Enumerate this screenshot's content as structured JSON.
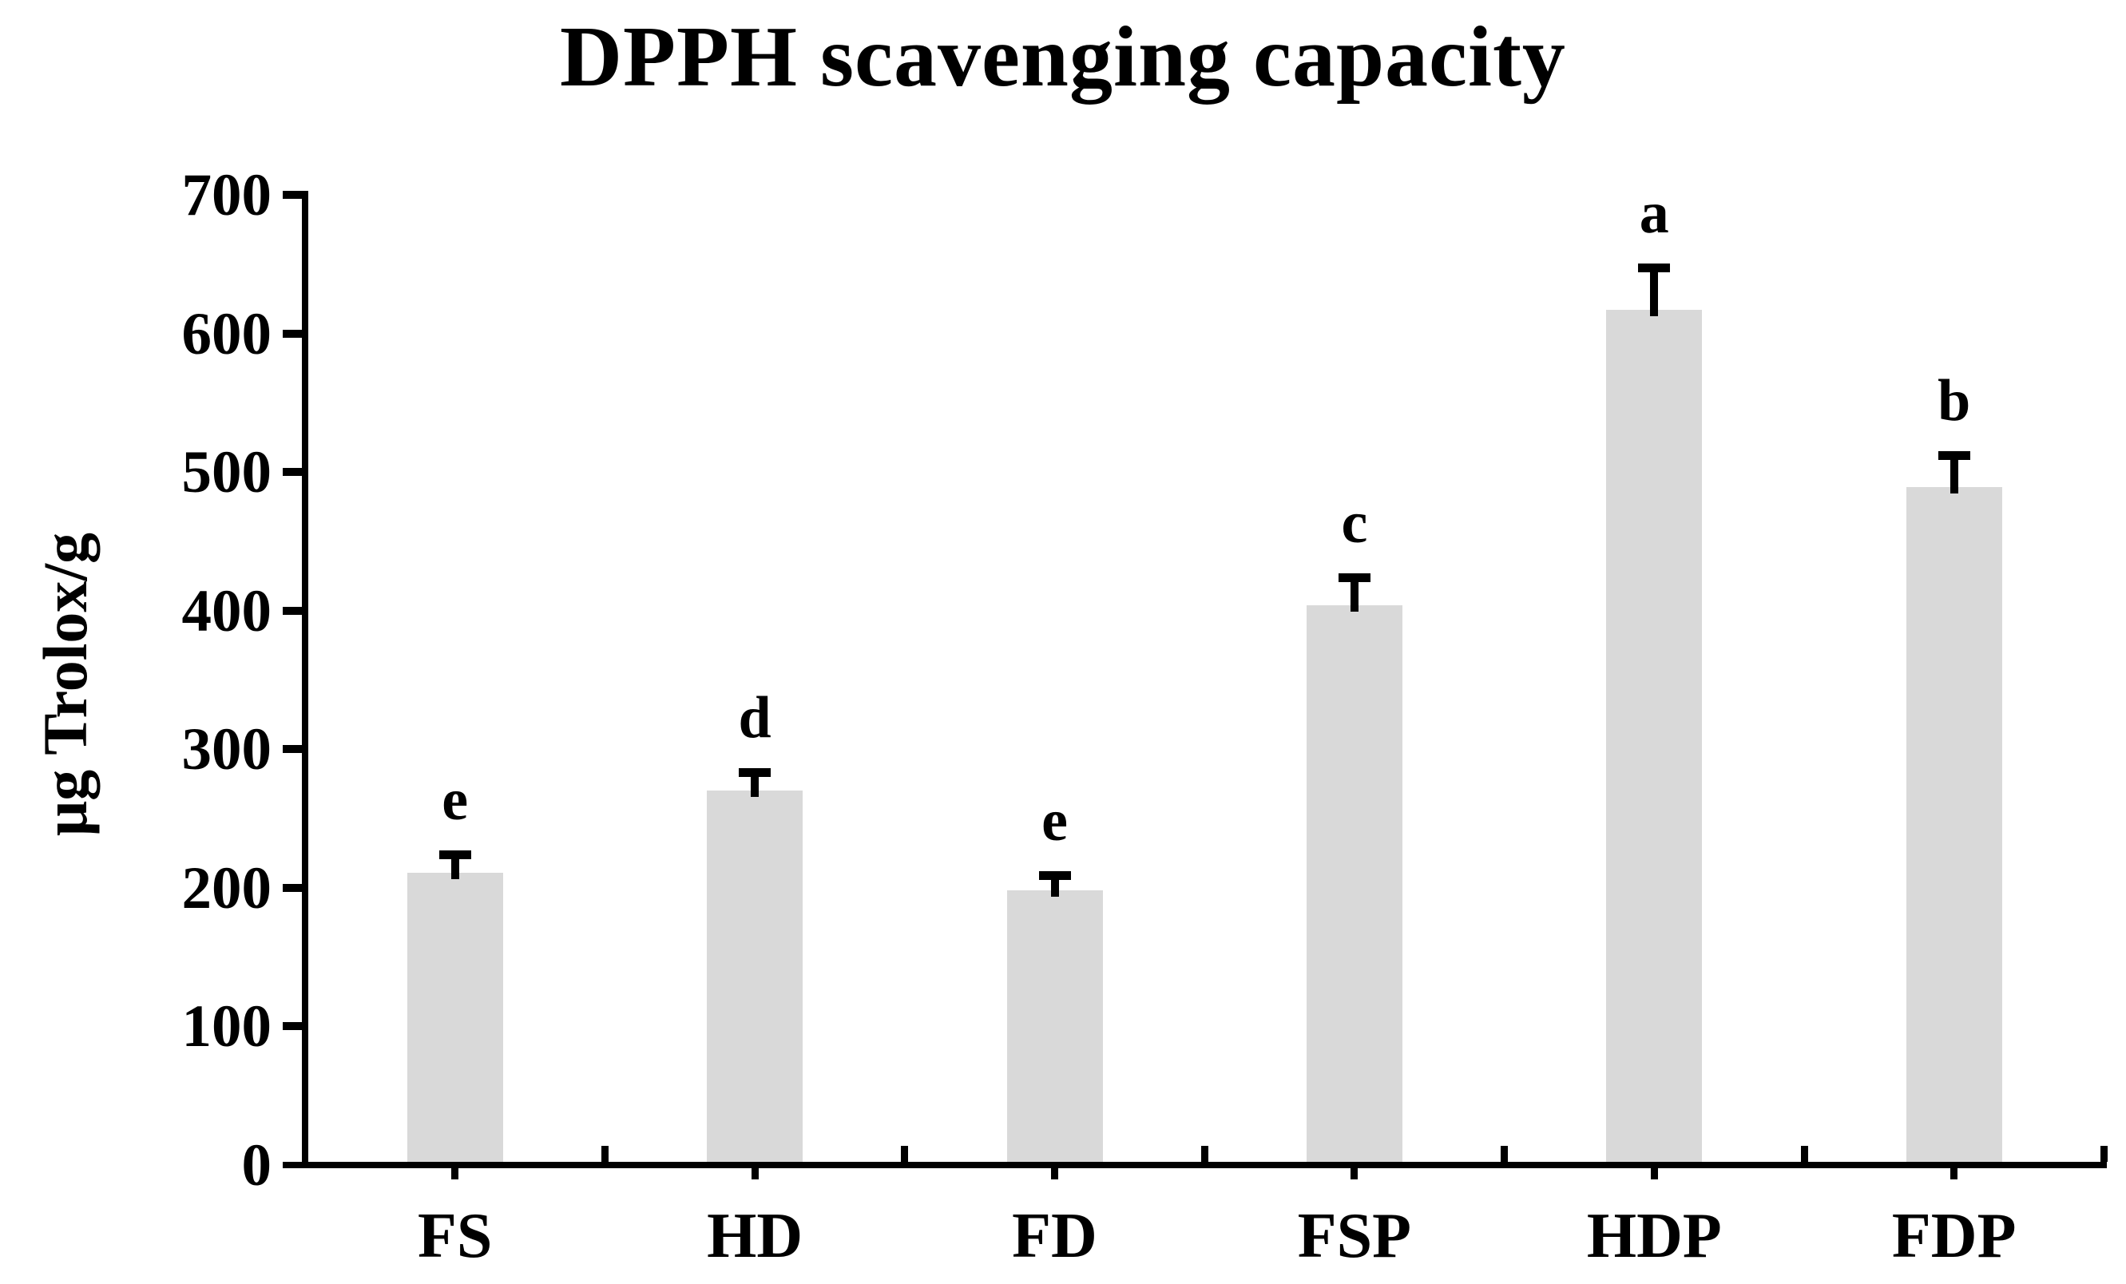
{
  "chart_data": {
    "type": "bar",
    "title": "DPPH scavenging capacity",
    "xlabel": "",
    "ylabel": "μg Trolox/g",
    "categories": [
      "FS",
      "HD",
      "FD",
      "FSP",
      "HDP",
      "FDP"
    ],
    "values": [
      211,
      270,
      198,
      404,
      617,
      489
    ],
    "error_bars_upper": [
      13,
      13,
      11,
      20,
      30,
      23
    ],
    "sig_letters": [
      "e",
      "d",
      "e",
      "c",
      "a",
      "b"
    ],
    "yticks": [
      0,
      100,
      200,
      300,
      400,
      500,
      600,
      700
    ],
    "ylim": [
      0,
      700
    ],
    "grid": false,
    "legend": "none",
    "bar_color": "#d9d9d9",
    "axis_color": "#000000",
    "text_color": "#000000"
  }
}
